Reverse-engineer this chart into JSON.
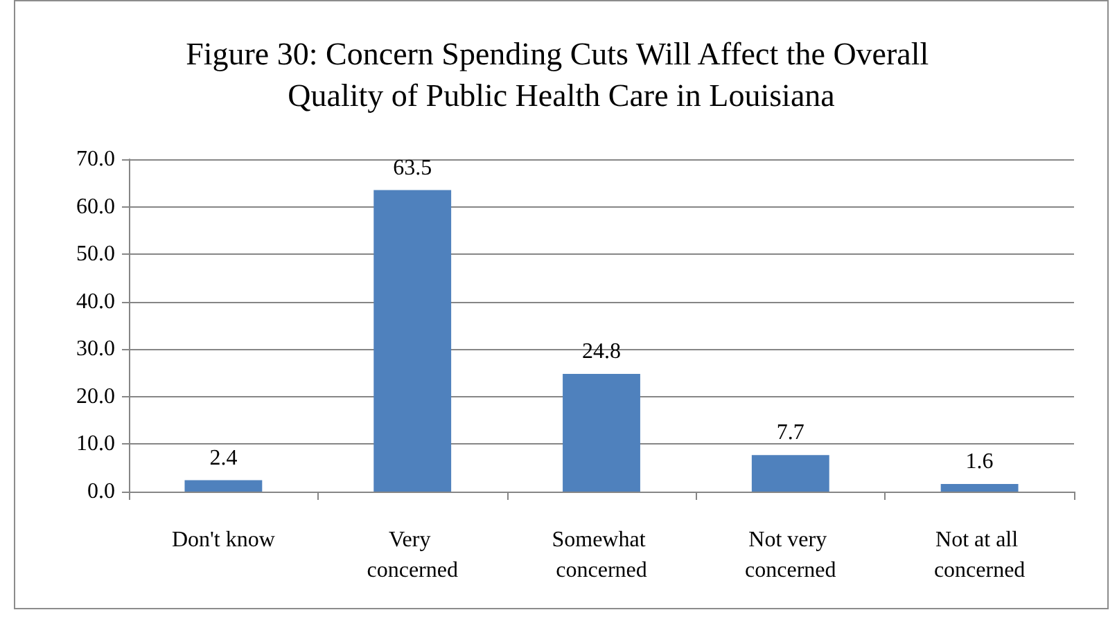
{
  "chart_data": {
    "type": "bar",
    "title": "Figure 30: Concern Spending Cuts Will Affect the Overall Quality of Public Health Care in Louisiana",
    "categories": [
      "Don't know",
      "Very concerned",
      "Somewhat concerned",
      "Not very concerned",
      "Not at all concerned"
    ],
    "values": [
      2.4,
      63.5,
      24.8,
      7.7,
      1.6
    ],
    "color": "#4f81bd",
    "ylim": [
      0,
      70
    ],
    "yticks": [
      {
        "value": 0,
        "label": "0.0"
      },
      {
        "value": 10,
        "label": "10.0"
      },
      {
        "value": 20,
        "label": "20.0"
      },
      {
        "value": 30,
        "label": "30.0"
      },
      {
        "value": 40,
        "label": "40.0"
      },
      {
        "value": 50,
        "label": "50.0"
      },
      {
        "value": 60,
        "label": "60.0"
      },
      {
        "value": 70,
        "label": "70.0"
      }
    ],
    "grid": "y",
    "data_labels": true
  }
}
